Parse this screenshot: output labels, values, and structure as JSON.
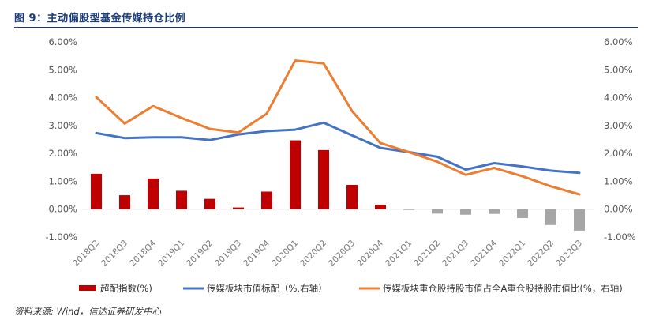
{
  "figure": {
    "label": "图 9：",
    "title": "主动偏股型基金传媒持仓比例",
    "source": "资料来源: Wind，信达证券研发中心"
  },
  "chart_data": {
    "type": "bar+line",
    "categories": [
      "2018Q2",
      "2018Q3",
      "2018Q4",
      "2019Q1",
      "2019Q2",
      "2019Q3",
      "2019Q4",
      "2020Q1",
      "2020Q2",
      "2020Q3",
      "2020Q4",
      "2021Q1",
      "2021Q2",
      "2021Q3",
      "2021Q4",
      "2022Q1",
      "2022Q2",
      "2022Q3"
    ],
    "y_left": {
      "min": -1.0,
      "max": 6.0,
      "step": 1.0,
      "format": "percent2",
      "ticks": [
        "6.00%",
        "5.00%",
        "4.00%",
        "3.00%",
        "2.00%",
        "1.00%",
        "0.00%",
        "-1.00%"
      ]
    },
    "y_right": {
      "min": -1.0,
      "max": 6.0,
      "step": 1.0,
      "format": "percent2",
      "ticks": [
        "6.00%",
        "5.00%",
        "4.00%",
        "3.00%",
        "2.00%",
        "1.00%",
        "0.00%",
        "-1.00%"
      ]
    },
    "grid": false,
    "legend_position": "bottom",
    "series": [
      {
        "name": "超配指数(%)",
        "type": "bar",
        "axis": "left",
        "color_positive": "#c00000",
        "color_negative": "#a6a6a6",
        "values": [
          1.27,
          0.5,
          1.1,
          0.66,
          0.37,
          0.06,
          0.63,
          2.47,
          2.12,
          0.87,
          0.16,
          -0.02,
          -0.16,
          -0.2,
          -0.17,
          -0.32,
          -0.57,
          -0.77
        ]
      },
      {
        "name": "传媒板块市值标配（%,右轴）",
        "type": "line",
        "axis": "right",
        "color": "#4472c4",
        "values": [
          2.73,
          2.55,
          2.58,
          2.58,
          2.48,
          2.68,
          2.8,
          2.85,
          3.1,
          2.65,
          2.2,
          2.05,
          1.88,
          1.42,
          1.65,
          1.53,
          1.38,
          1.3
        ]
      },
      {
        "name": "传媒板块重仓股持股市值占全A重仓股持股市值比(%，右轴)",
        "type": "line",
        "axis": "right",
        "color": "#ed7d31",
        "values": [
          4.02,
          3.07,
          3.7,
          3.27,
          2.88,
          2.75,
          3.43,
          5.33,
          5.23,
          3.52,
          2.37,
          2.05,
          1.7,
          1.23,
          1.48,
          1.18,
          0.82,
          0.53
        ]
      }
    ]
  }
}
